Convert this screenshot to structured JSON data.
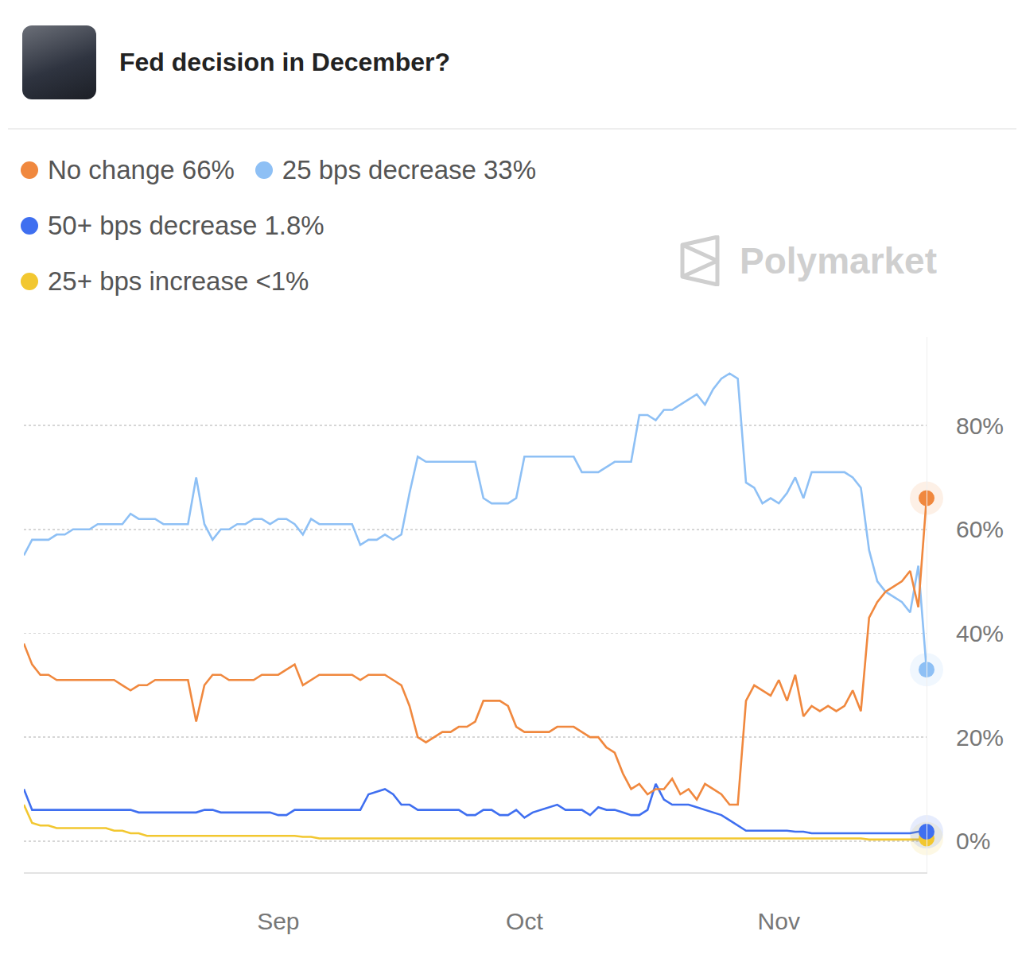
{
  "header": {
    "title": "Fed decision in December?"
  },
  "watermark": "Polymarket",
  "chart_data": {
    "type": "line",
    "categories": [
      null,
      null,
      null,
      null,
      null,
      null,
      null,
      null,
      null,
      null,
      null,
      null,
      null,
      null,
      null,
      null,
      null,
      null,
      null,
      null,
      null,
      null,
      null,
      null,
      null,
      null,
      null,
      null,
      null,
      null,
      null,
      "Sep",
      null,
      null,
      null,
      null,
      null,
      null,
      null,
      null,
      null,
      null,
      null,
      null,
      null,
      null,
      null,
      null,
      null,
      null,
      null,
      null,
      null,
      null,
      null,
      null,
      null,
      null,
      null,
      null,
      null,
      "Oct",
      null,
      null,
      null,
      null,
      null,
      null,
      null,
      null,
      null,
      null,
      null,
      null,
      null,
      null,
      null,
      null,
      null,
      null,
      null,
      null,
      null,
      null,
      null,
      null,
      null,
      null,
      null,
      null,
      null,
      null,
      "Nov",
      null,
      null,
      null,
      null,
      null,
      null,
      null,
      null,
      null,
      null,
      null,
      null,
      null,
      null,
      null,
      null,
      null,
      null
    ],
    "series": [
      {
        "name": "No change 66%",
        "color": "#f0883e",
        "values": [
          38,
          34,
          32,
          32,
          31,
          31,
          31,
          31,
          31,
          31,
          31,
          31,
          30,
          29,
          30,
          30,
          31,
          31,
          31,
          31,
          31,
          23,
          30,
          32,
          32,
          31,
          31,
          31,
          31,
          32,
          32,
          32,
          33,
          34,
          30,
          31,
          32,
          32,
          32,
          32,
          32,
          31,
          32,
          32,
          32,
          31,
          30,
          26,
          20,
          19,
          20,
          21,
          21,
          22,
          22,
          23,
          27,
          27,
          27,
          26,
          22,
          21,
          21,
          21,
          21,
          22,
          22,
          22,
          21,
          20,
          20,
          18,
          17,
          13,
          10,
          11,
          9,
          10,
          10,
          12,
          9,
          10,
          8,
          11,
          10,
          9,
          7,
          7,
          27,
          30,
          29,
          28,
          31,
          27,
          32,
          24,
          26,
          25,
          26,
          25,
          26,
          29,
          25,
          43,
          46,
          48,
          49,
          50,
          52,
          45,
          66
        ]
      },
      {
        "name": "25 bps decrease 33%",
        "color": "#8ec0f5",
        "values": [
          55,
          58,
          58,
          58,
          59,
          59,
          60,
          60,
          60,
          61,
          61,
          61,
          61,
          63,
          62,
          62,
          62,
          61,
          61,
          61,
          61,
          70,
          61,
          58,
          60,
          60,
          61,
          61,
          62,
          62,
          61,
          62,
          62,
          61,
          59,
          62,
          61,
          61,
          61,
          61,
          61,
          57,
          58,
          58,
          59,
          58,
          59,
          67,
          74,
          73,
          73,
          73,
          73,
          73,
          73,
          73,
          66,
          65,
          65,
          65,
          66,
          74,
          74,
          74,
          74,
          74,
          74,
          74,
          71,
          71,
          71,
          72,
          73,
          73,
          73,
          82,
          82,
          81,
          83,
          83,
          84,
          85,
          86,
          84,
          87,
          89,
          90,
          89,
          69,
          68,
          65,
          66,
          65,
          67,
          70,
          66,
          71,
          71,
          71,
          71,
          71,
          70,
          68,
          56,
          50,
          48,
          47,
          46,
          44,
          53,
          33
        ]
      },
      {
        "name": "50+ bps decrease 1.8%",
        "color": "#3f6ff0",
        "values": [
          10,
          6,
          6,
          6,
          6,
          6,
          6,
          6,
          6,
          6,
          6,
          6,
          6,
          6,
          5.5,
          5.5,
          5.5,
          5.5,
          5.5,
          5.5,
          5.5,
          5.5,
          6,
          6,
          5.5,
          5.5,
          5.5,
          5.5,
          5.5,
          5.5,
          5.5,
          5,
          5,
          6,
          6,
          6,
          6,
          6,
          6,
          6,
          6,
          6,
          9,
          9.5,
          10,
          9,
          7,
          7,
          6,
          6,
          6,
          6,
          6,
          6,
          5,
          5,
          6,
          6,
          5,
          5,
          6,
          4.5,
          5.5,
          6,
          6.5,
          7,
          6,
          6,
          6,
          5,
          6.5,
          6,
          6,
          5.5,
          5,
          5,
          6,
          11,
          8,
          7,
          7,
          7,
          6.5,
          6,
          5.5,
          5,
          4,
          3,
          2,
          2,
          2,
          2,
          2,
          2,
          1.8,
          1.8,
          1.5,
          1.5,
          1.5,
          1.5,
          1.5,
          1.5,
          1.5,
          1.5,
          1.5,
          1.5,
          1.5,
          1.5,
          1.5,
          1.8,
          1.8
        ]
      },
      {
        "name": "25+ bps increase <1%",
        "color": "#f2c730",
        "values": [
          7,
          3.5,
          3,
          3,
          2.5,
          2.5,
          2.5,
          2.5,
          2.5,
          2.5,
          2.5,
          2,
          2,
          1.5,
          1.5,
          1,
          1,
          1,
          1,
          1,
          1,
          1,
          1,
          1,
          1,
          1,
          1,
          1,
          1,
          1,
          1,
          1,
          1,
          1,
          0.8,
          0.8,
          0.5,
          0.5,
          0.5,
          0.5,
          0.5,
          0.5,
          0.5,
          0.5,
          0.5,
          0.5,
          0.5,
          0.5,
          0.5,
          0.5,
          0.5,
          0.5,
          0.5,
          0.5,
          0.5,
          0.5,
          0.5,
          0.5,
          0.5,
          0.5,
          0.5,
          0.5,
          0.5,
          0.5,
          0.5,
          0.5,
          0.5,
          0.5,
          0.5,
          0.5,
          0.5,
          0.5,
          0.5,
          0.5,
          0.5,
          0.5,
          0.5,
          0.5,
          0.5,
          0.5,
          0.5,
          0.5,
          0.5,
          0.5,
          0.5,
          0.5,
          0.5,
          0.5,
          0.5,
          0.5,
          0.5,
          0.5,
          0.5,
          0.5,
          0.5,
          0.5,
          0.5,
          0.5,
          0.5,
          0.5,
          0.5,
          0.5,
          0.5,
          0.3,
          0.3,
          0.3,
          0.3,
          0.3,
          0.3,
          0.3,
          0.5
        ]
      }
    ],
    "ylim": [
      -6,
      97
    ],
    "yticks": [
      {
        "value": 0,
        "label": "0%"
      },
      {
        "value": 20,
        "label": "20%"
      },
      {
        "value": 40,
        "label": "40%"
      },
      {
        "value": 60,
        "label": "60%"
      },
      {
        "value": 80,
        "label": "80%"
      }
    ],
    "grid": true,
    "legend": "top left",
    "marker": "circle"
  }
}
